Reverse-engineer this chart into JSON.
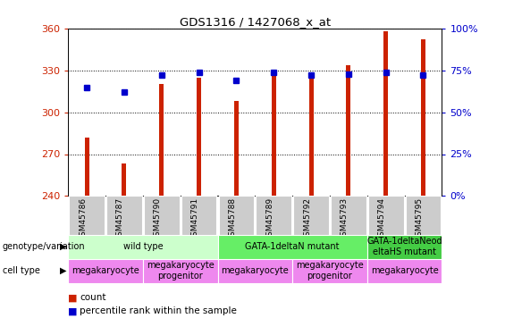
{
  "title": "GDS1316 / 1427068_x_at",
  "samples": [
    "GSM45786",
    "GSM45787",
    "GSM45790",
    "GSM45791",
    "GSM45788",
    "GSM45789",
    "GSM45792",
    "GSM45793",
    "GSM45794",
    "GSM45795"
  ],
  "counts": [
    282,
    263,
    320,
    325,
    308,
    326,
    325,
    334,
    358,
    352
  ],
  "percentile": [
    65,
    62,
    72,
    74,
    69,
    74,
    72,
    73,
    74,
    72
  ],
  "ylim_left": [
    240,
    360
  ],
  "ylim_right": [
    0,
    100
  ],
  "yticks_left": [
    240,
    270,
    300,
    330,
    360
  ],
  "yticks_right": [
    0,
    25,
    50,
    75,
    100
  ],
  "bar_color": "#cc2200",
  "dot_color": "#0000cc",
  "grid_color": "#000000",
  "genotype_groups": [
    {
      "label": "wild type",
      "start": 0,
      "end": 3,
      "color": "#ccffcc"
    },
    {
      "label": "GATA-1deltaN mutant",
      "start": 4,
      "end": 7,
      "color": "#66ee66"
    },
    {
      "label": "GATA-1deltaNeod\neltaHS mutant",
      "start": 8,
      "end": 9,
      "color": "#44cc44"
    }
  ],
  "cell_type_groups": [
    {
      "label": "megakaryocyte",
      "start": 0,
      "end": 1,
      "color": "#ee88ee"
    },
    {
      "label": "megakaryocyte\nprogenitor",
      "start": 2,
      "end": 3,
      "color": "#ee88ee"
    },
    {
      "label": "megakaryocyte",
      "start": 4,
      "end": 5,
      "color": "#ee88ee"
    },
    {
      "label": "megakaryocyte\nprogenitor",
      "start": 6,
      "end": 7,
      "color": "#ee88ee"
    },
    {
      "label": "megakaryocyte",
      "start": 8,
      "end": 9,
      "color": "#ee88ee"
    }
  ],
  "legend_count_color": "#cc2200",
  "legend_pct_color": "#0000cc",
  "left_label_color": "#cc2200",
  "right_label_color": "#0000cc",
  "tick_label_gray": "#cccccc"
}
